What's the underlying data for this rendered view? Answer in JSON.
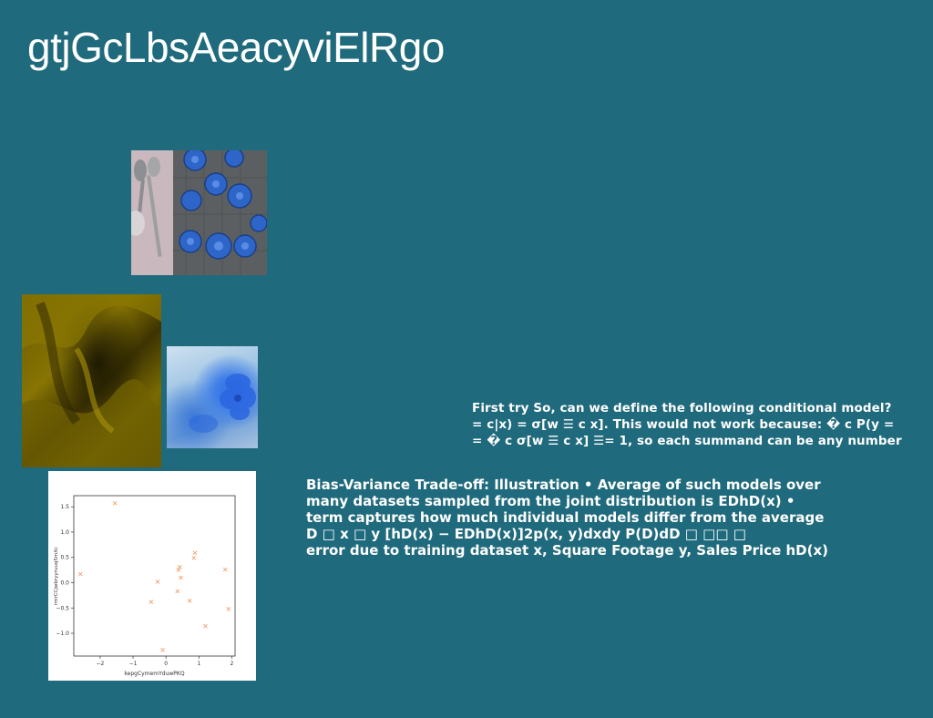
{
  "title": "gtjGcLbsAeacyviElRgo",
  "images": [
    {
      "name": "spoons-ornaments-photo"
    },
    {
      "name": "golden-drapery-photo"
    },
    {
      "name": "blue-flower-photo"
    }
  ],
  "colors": {
    "background": "#1f6a7c",
    "marker": "#f0a070"
  },
  "text_block_1": {
    "lines": [
      "First try So, can we define the following conditional model?",
      "= c|x) = σ[w ☰ c x]. This would not work because: � c P(y =",
      "= � c σ[w ☰ c x] ☰= 1, so each summand can be any number"
    ]
  },
  "text_block_2": {
    "lines": [
      "Bias-Variance Trade-off: Illustration • Average of such models over",
      "many datasets sampled from the joint distribution is EDhD(x) •",
      "term captures how much individual models differ from the average",
      "D □ x □ y [hD(x) − EDhD(x)]2p(x, y)dxdy P(D)dD □ □□ □",
      "error due to training dataset x, Square Footage y, Sales Price hD(x)"
    ]
  },
  "chart_data": {
    "type": "scatter",
    "xlabel": "kepgCymemYduwPKQ",
    "ylabel": "rmrCCjwbryyruuq5mXc",
    "xlim": [
      -2.8,
      2.1
    ],
    "ylim": [
      -1.45,
      1.72
    ],
    "x_ticks": [
      -2,
      -1,
      0,
      1,
      2
    ],
    "y_ticks": [
      1.5,
      1.0,
      0.5,
      0.0,
      -0.5,
      -1.0
    ],
    "x_tick_labels": [
      "−2",
      "−1",
      "0",
      "1",
      "2"
    ],
    "y_tick_labels": [
      "1.5",
      "1.0",
      "0.5",
      "0.0",
      "−0.5",
      "−1.0"
    ],
    "marker": "x",
    "points": [
      {
        "x": -2.6,
        "y": 0.17
      },
      {
        "x": -1.55,
        "y": 1.57
      },
      {
        "x": -0.45,
        "y": -0.38
      },
      {
        "x": -0.25,
        "y": 0.02
      },
      {
        "x": -0.1,
        "y": -1.33
      },
      {
        "x": 0.35,
        "y": -0.17
      },
      {
        "x": 0.38,
        "y": 0.25
      },
      {
        "x": 0.42,
        "y": 0.31
      },
      {
        "x": 0.45,
        "y": 0.1
      },
      {
        "x": 0.72,
        "y": -0.36
      },
      {
        "x": 0.85,
        "y": 0.49
      },
      {
        "x": 0.88,
        "y": 0.59
      },
      {
        "x": 1.2,
        "y": -0.86
      },
      {
        "x": 1.8,
        "y": 0.26
      },
      {
        "x": 1.9,
        "y": -0.52
      }
    ]
  }
}
